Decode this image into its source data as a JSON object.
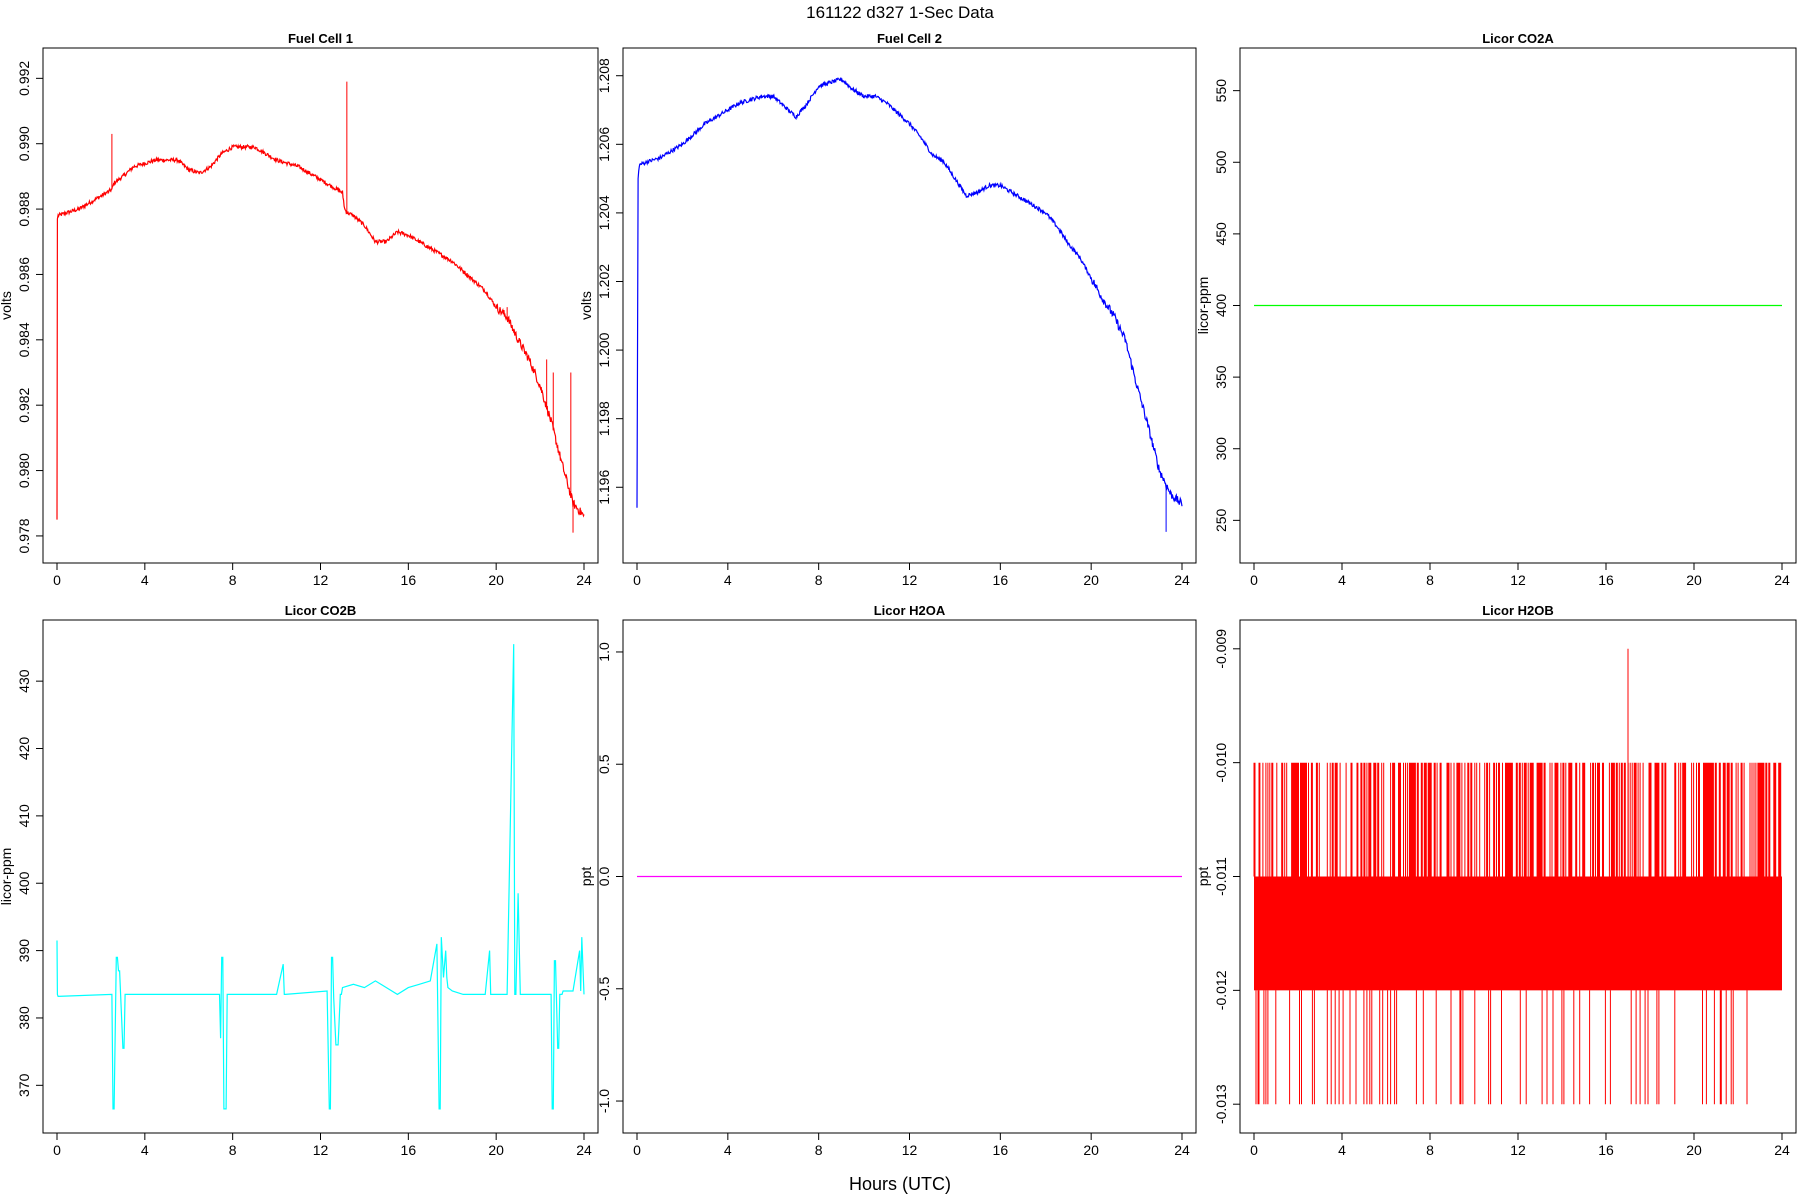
{
  "figure": {
    "title": "161122   d327   1-Sec Data",
    "xlabel": "Hours (UTC)"
  },
  "chart_data": [
    {
      "type": "line",
      "title": "Fuel Cell 1",
      "ylabel": "volts",
      "color": "#ff0000",
      "xlim": [
        0,
        24
      ],
      "ylim": [
        0.9776,
        0.9925
      ],
      "xticks": [
        0,
        4,
        8,
        12,
        16,
        20,
        24
      ],
      "yticks": [
        0.978,
        0.98,
        0.982,
        0.984,
        0.986,
        0.988,
        0.99,
        0.992
      ],
      "ytick_labels": [
        "0.978",
        "0.980",
        "0.982",
        "0.984",
        "0.986",
        "0.988",
        "0.990",
        "0.992"
      ],
      "series": [
        {
          "x": [
            0,
            0.02,
            0.05,
            0.5,
            1,
            1.5,
            2,
            2.5,
            2.6,
            3,
            3.5,
            4,
            4.5,
            5,
            5.5,
            6,
            6.5,
            7,
            7.5,
            8,
            8.5,
            9,
            9.5,
            10,
            10.5,
            11,
            11.5,
            12,
            12.5,
            13,
            13.1,
            13.2,
            13.5,
            14,
            14.5,
            15,
            15.5,
            16,
            16.5,
            17,
            17.5,
            18,
            18.5,
            19,
            19.5,
            20,
            20.5,
            21,
            21.5,
            22,
            22.5,
            23,
            23.5,
            24
          ],
          "y": [
            0.9785,
            0.9877,
            0.9878,
            0.9879,
            0.988,
            0.9882,
            0.9884,
            0.9886,
            0.9888,
            0.989,
            0.9893,
            0.9894,
            0.9895,
            0.9895,
            0.9895,
            0.9892,
            0.9891,
            0.9893,
            0.9897,
            0.9899,
            0.9899,
            0.9899,
            0.9897,
            0.9895,
            0.9894,
            0.9893,
            0.9891,
            0.9889,
            0.9887,
            0.9885,
            0.988,
            0.9879,
            0.9878,
            0.9875,
            0.987,
            0.987,
            0.9873,
            0.9872,
            0.987,
            0.9868,
            0.9866,
            0.9864,
            0.9861,
            0.9858,
            0.9855,
            0.985,
            0.9847,
            0.984,
            0.9834,
            0.9826,
            0.9815,
            0.9802,
            0.979,
            0.9786
          ]
        }
      ],
      "spikes": [
        [
          2.5,
          0.9903
        ],
        [
          13.2,
          0.9919
        ],
        [
          20.5,
          0.985
        ],
        [
          22.3,
          0.9834
        ],
        [
          22.6,
          0.983
        ],
        [
          23.4,
          0.983
        ],
        [
          23.5,
          0.9781
        ]
      ]
    },
    {
      "type": "line",
      "title": "Fuel Cell 2",
      "ylabel": "volts",
      "color": "#0000ff",
      "xlim": [
        0,
        24
      ],
      "ylim": [
        1.1942,
        1.2084
      ],
      "xticks": [
        0,
        4,
        8,
        12,
        16,
        20,
        24
      ],
      "yticks": [
        1.196,
        1.198,
        1.2,
        1.202,
        1.204,
        1.206,
        1.208
      ],
      "ytick_labels": [
        "1.196",
        "1.198",
        "1.200",
        "1.202",
        "1.204",
        "1.206",
        "1.208"
      ],
      "series": [
        {
          "x": [
            0,
            0.05,
            0.1,
            0.5,
            1,
            1.5,
            2,
            2.5,
            3,
            3.5,
            4,
            4.5,
            5,
            5.5,
            6,
            6.5,
            7,
            7.5,
            8,
            8.5,
            9,
            9.5,
            10,
            10.5,
            11,
            11.5,
            12,
            12.5,
            13,
            13.5,
            14,
            14.5,
            15,
            15.5,
            16,
            16.5,
            17,
            17.5,
            18,
            18.5,
            19,
            19.5,
            20,
            20.5,
            21,
            21.5,
            22,
            22.5,
            23,
            23.5,
            24
          ],
          "y": [
            1.1954,
            1.205,
            1.2054,
            1.2055,
            1.2056,
            1.2058,
            1.206,
            1.2063,
            1.2066,
            1.2068,
            1.207,
            1.2072,
            1.2073,
            1.2074,
            1.2074,
            1.2071,
            1.2068,
            1.2072,
            1.2077,
            1.2078,
            1.2079,
            1.2076,
            1.2074,
            1.2074,
            1.2072,
            1.2069,
            1.2066,
            1.2062,
            1.2057,
            1.2055,
            1.205,
            1.2045,
            1.2046,
            1.2048,
            1.2048,
            1.2046,
            1.2044,
            1.2042,
            1.204,
            1.2036,
            1.2031,
            1.2027,
            1.2021,
            1.2015,
            1.201,
            1.2003,
            1.199,
            1.1978,
            1.1965,
            1.1958,
            1.1955
          ]
        }
      ],
      "spikes": [
        [
          23.3,
          1.1947
        ]
      ]
    },
    {
      "type": "line",
      "title": "Licor CO2A",
      "ylabel": "licor-ppm",
      "color": "#00ff00",
      "xlim": [
        0,
        24
      ],
      "ylim": [
        230,
        570
      ],
      "xticks": [
        0,
        4,
        8,
        12,
        16,
        20,
        24
      ],
      "yticks": [
        250,
        300,
        350,
        400,
        450,
        500,
        550
      ],
      "ytick_labels": [
        "250",
        "300",
        "350",
        "400",
        "450",
        "500",
        "550"
      ],
      "series": [
        {
          "x": [
            0,
            24
          ],
          "y": [
            400,
            400
          ]
        }
      ],
      "spikes": []
    },
    {
      "type": "line",
      "title": "Licor CO2B",
      "ylabel": "licor-ppm",
      "color": "#00ffff",
      "xlim": [
        0,
        24
      ],
      "ylim": [
        365,
        437
      ],
      "xticks": [
        0,
        4,
        8,
        12,
        16,
        20,
        24
      ],
      "yticks": [
        370,
        380,
        390,
        400,
        410,
        420,
        430
      ],
      "ytick_labels": [
        "370",
        "380",
        "390",
        "400",
        "410",
        "420",
        "430"
      ],
      "series": [
        {
          "x": [
            0,
            0.02,
            0.05,
            2.5,
            2.55,
            2.6,
            2.7,
            2.75,
            2.8,
            2.85,
            3.0,
            3.05,
            3.1,
            3.15,
            3.2,
            7.4,
            7.45,
            7.5,
            7.55,
            7.6,
            7.7,
            7.75,
            7.8,
            10.0,
            10.3,
            10.35,
            10.4,
            12.3,
            12.4,
            12.45,
            12.5,
            12.55,
            12.6,
            12.7,
            12.8,
            12.9,
            12.95,
            13.0,
            13.5,
            14,
            14.5,
            15,
            15.5,
            16,
            16.5,
            17.0,
            17.3,
            17.4,
            17.45,
            17.5,
            17.55,
            17.6,
            17.7,
            17.75,
            17.8,
            18.0,
            18.5,
            19,
            19.5,
            19.7,
            19.75,
            19.8,
            20.5,
            20.8,
            20.85,
            20.9,
            21.0,
            21.1,
            21.15,
            21.2,
            22.0,
            22.5,
            22.55,
            22.6,
            22.65,
            22.7,
            22.8,
            22.85,
            22.9,
            23.0,
            23.05,
            23.1,
            23.5,
            23.8,
            23.85,
            23.9,
            24
          ],
          "y": [
            391.5,
            383.5,
            383.2,
            383.5,
            366.5,
            366.5,
            389.0,
            389.0,
            387.0,
            387.0,
            375.5,
            375.5,
            383.5,
            383.5,
            383.5,
            383.5,
            377.0,
            389.0,
            389.0,
            366.5,
            366.5,
            383.5,
            383.5,
            383.5,
            388.0,
            383.5,
            383.5,
            384.0,
            366.5,
            366.5,
            389.0,
            389.0,
            383.0,
            376.0,
            376.0,
            383.5,
            383.5,
            384.5,
            385.0,
            384.5,
            385.5,
            384.5,
            383.5,
            384.5,
            385.0,
            385.5,
            391.0,
            366.5,
            366.5,
            392.0,
            389.0,
            386.0,
            390.0,
            386.0,
            384.5,
            384.0,
            383.5,
            383.5,
            383.5,
            390.0,
            383.5,
            383.5,
            383.5,
            435.5,
            383.5,
            383.5,
            398.5,
            383.5,
            383.5,
            383.5,
            383.5,
            383.5,
            366.5,
            366.5,
            388.5,
            388.5,
            375.5,
            375.5,
            383.5,
            383.5,
            384.0,
            384.0,
            384.0,
            390.0,
            384.0,
            392.0,
            383.5
          ]
        }
      ],
      "spikes": []
    },
    {
      "type": "line",
      "title": "Licor H2OA",
      "ylabel": "ppt",
      "color": "#ff00ff",
      "xlim": [
        0,
        24
      ],
      "ylim": [
        -1.08,
        1.08
      ],
      "xticks": [
        0,
        4,
        8,
        12,
        16,
        20,
        24
      ],
      "yticks": [
        -1.0,
        -0.5,
        0.0,
        0.5,
        1.0
      ],
      "ytick_labels": [
        "-1.0",
        "-0.5",
        "0.0",
        "0.5",
        "1.0"
      ],
      "series": [
        {
          "x": [
            0,
            24
          ],
          "y": [
            0,
            0
          ]
        }
      ],
      "spikes": []
    },
    {
      "type": "line",
      "title": "Licor H2OB",
      "ylabel": "ppt",
      "color": "#ff0000",
      "xlim": [
        0,
        24
      ],
      "ylim": [
        -0.01313,
        -0.00887
      ],
      "xticks": [
        0,
        4,
        8,
        12,
        16,
        20,
        24
      ],
      "yticks": [
        -0.013,
        -0.012,
        -0.011,
        -0.01,
        -0.009
      ],
      "ytick_labels": [
        "-0.013",
        "-0.012",
        "-0.011",
        "-0.010",
        "-0.009"
      ],
      "band": {
        "from": -0.012,
        "to": -0.011
      },
      "series": [],
      "spikes": [
        [
          17.0,
          -0.009
        ]
      ]
    }
  ]
}
